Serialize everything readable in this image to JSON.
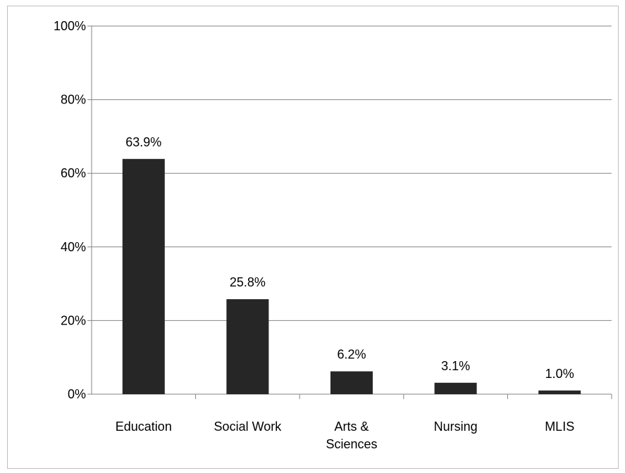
{
  "chart_data": {
    "type": "bar",
    "title": "",
    "xlabel": "",
    "ylabel": "",
    "categories": [
      [
        "Education"
      ],
      [
        "Social Work"
      ],
      [
        "Arts &",
        "Sciences"
      ],
      [
        "Nursing"
      ],
      [
        "MLIS"
      ]
    ],
    "values": [
      63.9,
      25.8,
      6.2,
      3.1,
      1.0
    ],
    "value_labels": [
      "63.9%",
      "25.8%",
      "6.2%",
      "3.1%",
      "1.0%"
    ],
    "ylim": [
      0,
      100
    ],
    "yticks": [
      0,
      20,
      40,
      60,
      80,
      100
    ],
    "ytick_labels": [
      "0%",
      "20%",
      "40%",
      "60%",
      "80%",
      "100%"
    ],
    "grid": true,
    "legend": "none",
    "colors": {
      "bar": "#262626",
      "grid": "#868686",
      "axis": "#868686"
    }
  }
}
